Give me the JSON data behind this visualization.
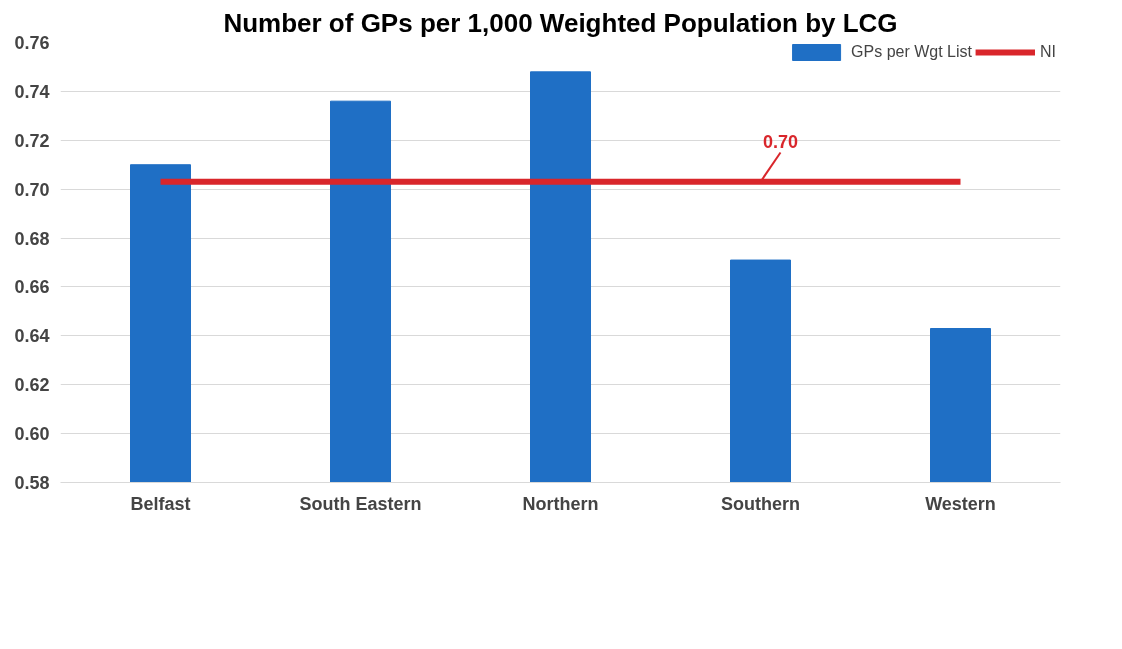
{
  "chart_data": {
    "type": "bar",
    "title": "Number of GPs per 1,000 Weighted Population by LCG",
    "categories": [
      "Belfast",
      "South Eastern",
      "Northern",
      "Southern",
      "Western"
    ],
    "series": [
      {
        "name": "GPs per Wgt List",
        "color": "#1f6fc5",
        "values": [
          0.71,
          0.736,
          0.748,
          0.671,
          0.643
        ]
      },
      {
        "name": "NI",
        "type": "line",
        "color": "#d9262b",
        "values": [
          0.703,
          0.703,
          0.703,
          0.703,
          0.703
        ]
      }
    ],
    "ylim": [
      0.58,
      0.76
    ],
    "yticks": [
      {
        "value": 0.58,
        "label": "0.58"
      },
      {
        "value": 0.6,
        "label": "0.60"
      },
      {
        "value": 0.62,
        "label": "0.62"
      },
      {
        "value": 0.64,
        "label": "0.64"
      },
      {
        "value": 0.66,
        "label": "0.66"
      },
      {
        "value": 0.68,
        "label": "0.68"
      },
      {
        "value": 0.7,
        "label": "0.70"
      },
      {
        "value": 0.72,
        "label": "0.72"
      },
      {
        "value": 0.74,
        "label": "0.74"
      },
      {
        "value": 0.76,
        "label": "0.76"
      }
    ],
    "annotations": [
      {
        "text": "0.70",
        "x": "Southern",
        "y": 0.703
      }
    ],
    "grid": "y",
    "legend": "top right"
  }
}
